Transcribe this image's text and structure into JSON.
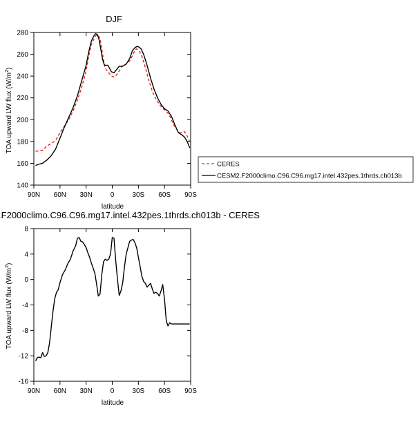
{
  "chart_data": [
    {
      "type": "line",
      "title": "DJF",
      "xlabel": "latitude",
      "ylabel": "TOA upward LW flux (W/m",
      "ylabel_sup": "2",
      "ylabel_tail": ")",
      "xlim": [
        90,
        -90
      ],
      "ylim": [
        140,
        280
      ],
      "xticks": [
        90,
        60,
        30,
        0,
        -30,
        -60,
        -90
      ],
      "xtick_labels": [
        "90N",
        "60N",
        "30N",
        "0",
        "30S",
        "60S",
        "90S"
      ],
      "yticks": [
        140,
        160,
        180,
        200,
        220,
        240,
        260,
        280
      ],
      "ytick_labels": [
        "140",
        "160",
        "180",
        "200",
        "220",
        "240",
        "260",
        "280"
      ],
      "legend_position": "right, outside plot",
      "series": [
        {
          "name": "CERES",
          "color": "#e8201a",
          "style": "dashed",
          "x": [
            88,
            80,
            75,
            70,
            65,
            60,
            55,
            50,
            45,
            40,
            35,
            30,
            27,
            24,
            21,
            19,
            17,
            15,
            13,
            11,
            9,
            7,
            5,
            3,
            1,
            -2,
            -5,
            -8,
            -12,
            -16,
            -20,
            -24,
            -26,
            -28,
            -31,
            -34,
            -38,
            -42,
            -46,
            -50,
            -55,
            -60,
            -65,
            -70,
            -75,
            -78,
            -80,
            -83,
            -86,
            -89
          ],
          "y": [
            171,
            172,
            176,
            178,
            181,
            188,
            194,
            200,
            208,
            218,
            230,
            245,
            258,
            269,
            274,
            277,
            278,
            276,
            270,
            260,
            250,
            246,
            244,
            242,
            240,
            239,
            241,
            245,
            250,
            251,
            254,
            260,
            264,
            265,
            263,
            258,
            248,
            236,
            226,
            219,
            213,
            209,
            205,
            196,
            190,
            188,
            188,
            189,
            185,
            180
          ]
        },
        {
          "name": "CESM2.F2000climo.C96.C96.mg17.intel.432pes.1thrds.ch013b",
          "color": "#000000",
          "style": "solid",
          "x": [
            88,
            85,
            80,
            75,
            70,
            65,
            60,
            55,
            50,
            45,
            40,
            35,
            30,
            27,
            24,
            21,
            19,
            17,
            15,
            13,
            11,
            9,
            7,
            5,
            3,
            1,
            -2,
            -5,
            -8,
            -12,
            -16,
            -20,
            -23,
            -26,
            -28,
            -30,
            -33,
            -36,
            -40,
            -44,
            -48,
            -52,
            -56,
            -60,
            -64,
            -68,
            -72,
            -76,
            -80,
            -83,
            -86,
            -89
          ],
          "y": [
            158,
            159,
            160,
            163,
            167,
            173,
            183,
            193,
            202,
            211,
            222,
            236,
            250,
            262,
            272,
            277,
            279,
            278,
            273,
            264,
            255,
            250,
            250,
            250,
            247,
            244,
            243,
            246,
            249,
            249,
            251,
            256,
            263,
            266,
            267,
            267,
            265,
            260,
            250,
            238,
            228,
            220,
            214,
            210,
            208,
            203,
            195,
            188,
            186,
            184,
            180,
            174
          ]
        }
      ]
    },
    {
      "type": "line",
      "title": ".F2000climo.C96.C96.mg17.intel.432pes.1thrds.ch013b - CERES",
      "xlabel": "latitude",
      "ylabel": "TOA upward LW flux (W/m",
      "ylabel_sup": "2",
      "ylabel_tail": ")",
      "xlim": [
        90,
        -90
      ],
      "ylim": [
        -16,
        8
      ],
      "xticks": [
        90,
        60,
        30,
        0,
        -30,
        -60,
        -90
      ],
      "xtick_labels": [
        "90N",
        "60N",
        "30N",
        "0",
        "30S",
        "60S",
        "90S"
      ],
      "yticks": [
        -16,
        -12,
        -8,
        -4,
        0,
        4,
        8
      ],
      "ytick_labels": [
        "-16",
        "-12",
        "-8",
        "-4",
        "0",
        "4",
        "8"
      ],
      "series": [
        {
          "name": "",
          "color": "#000000",
          "style": "solid",
          "x": [
            88,
            86,
            84,
            82,
            80,
            78,
            76,
            74,
            72,
            70,
            68,
            66,
            64,
            62,
            60,
            57,
            54,
            51,
            48,
            45,
            42,
            40,
            38,
            36,
            34,
            32,
            30,
            28,
            26,
            24,
            22,
            20,
            18,
            16,
            14,
            12,
            10,
            8,
            6,
            4,
            2,
            0,
            -2,
            -4,
            -6,
            -8,
            -10,
            -12,
            -14,
            -16,
            -18,
            -20,
            -22,
            -24,
            -26,
            -28,
            -30,
            -32,
            -34,
            -36,
            -38,
            -40,
            -42,
            -44,
            -46,
            -48,
            -50,
            -52,
            -54,
            -56,
            -58,
            -60,
            -62,
            -64,
            -66,
            -68,
            -70,
            -72,
            -74,
            -76,
            -78,
            -80,
            -82,
            -84,
            -86,
            -88,
            -89
          ],
          "y": [
            -12.8,
            -12.3,
            -12.2,
            -12.3,
            -11.5,
            -12.1,
            -12.0,
            -11.5,
            -10.0,
            -7.5,
            -5.0,
            -3.0,
            -2.0,
            -1.6,
            -0.5,
            0.8,
            1.5,
            2.5,
            3.2,
            4.5,
            5.3,
            6.5,
            6.6,
            6.0,
            5.9,
            5.5,
            5.0,
            4.2,
            3.5,
            2.6,
            1.8,
            1.0,
            -0.7,
            -2.6,
            -2.3,
            0.8,
            2.8,
            3.2,
            3.0,
            3.2,
            4.0,
            6.6,
            6.5,
            3.0,
            0.0,
            -2.5,
            -1.8,
            -0.5,
            2.0,
            4.0,
            5.0,
            6.0,
            6.2,
            6.3,
            5.8,
            5.0,
            3.5,
            2.0,
            0.5,
            -0.3,
            -0.6,
            -1.2,
            -0.9,
            -0.6,
            -1.5,
            -2.2,
            -2.0,
            -2.2,
            -2.6,
            -1.8,
            -0.8,
            -3.2,
            -6.5,
            -7.3,
            -6.8,
            -7.0,
            -7.0,
            -7.0,
            -7.0,
            -7.0,
            -7.0,
            -7.0,
            -7.0,
            -7.0,
            -7.0,
            -7.0,
            -7.0
          ]
        }
      ]
    }
  ]
}
